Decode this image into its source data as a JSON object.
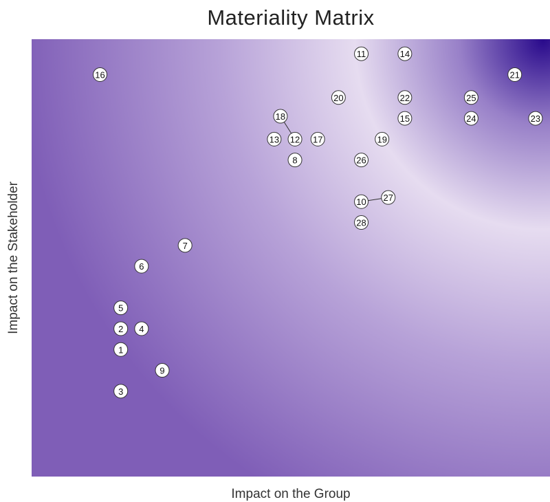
{
  "chart_data": {
    "type": "scatter",
    "title": "Materiality Matrix",
    "xlabel": "Impact on the Group",
    "ylabel": "Impact on the Stakeholder",
    "xlim": [
      0,
      25
    ],
    "ylim": [
      0,
      21
    ],
    "grid": false,
    "legend": "none",
    "background_gradient": {
      "colors": [
        "#7f5eb7",
        "#b7a2d8",
        "#e6dcf0",
        "#9880c8",
        "#2a0b8c"
      ],
      "description": "radial emphasis increasing toward top-right"
    },
    "marker_style": {
      "fill": "#ffffff",
      "stroke": "#333333"
    },
    "points": [
      {
        "label": "1",
        "x": 4.3,
        "y": 6.1
      },
      {
        "label": "2",
        "x": 4.3,
        "y": 7.1
      },
      {
        "label": "3",
        "x": 4.3,
        "y": 4.1
      },
      {
        "label": "4",
        "x": 5.3,
        "y": 7.1
      },
      {
        "label": "5",
        "x": 4.3,
        "y": 8.1
      },
      {
        "label": "6",
        "x": 5.3,
        "y": 10.1
      },
      {
        "label": "7",
        "x": 7.4,
        "y": 11.1
      },
      {
        "label": "8",
        "x": 12.7,
        "y": 15.2
      },
      {
        "label": "9",
        "x": 6.3,
        "y": 5.1
      },
      {
        "label": "10",
        "x": 15.9,
        "y": 13.2
      },
      {
        "label": "11",
        "x": 15.9,
        "y": 20.3
      },
      {
        "label": "12",
        "x": 12.7,
        "y": 16.2
      },
      {
        "label": "13",
        "x": 11.7,
        "y": 16.2
      },
      {
        "label": "14",
        "x": 18.0,
        "y": 20.3
      },
      {
        "label": "15",
        "x": 18.0,
        "y": 17.2
      },
      {
        "label": "16",
        "x": 3.3,
        "y": 19.3
      },
      {
        "label": "17",
        "x": 13.8,
        "y": 16.2
      },
      {
        "label": "18",
        "x": 12.0,
        "y": 17.3
      },
      {
        "label": "19",
        "x": 16.9,
        "y": 16.2
      },
      {
        "label": "20",
        "x": 14.8,
        "y": 18.2
      },
      {
        "label": "21",
        "x": 23.3,
        "y": 19.3
      },
      {
        "label": "22",
        "x": 18.0,
        "y": 18.2
      },
      {
        "label": "23",
        "x": 24.3,
        "y": 17.2
      },
      {
        "label": "24",
        "x": 21.2,
        "y": 17.2
      },
      {
        "label": "25",
        "x": 21.2,
        "y": 18.2
      },
      {
        "label": "26",
        "x": 15.9,
        "y": 15.2
      },
      {
        "label": "27",
        "x": 17.2,
        "y": 13.4
      },
      {
        "label": "28",
        "x": 15.9,
        "y": 12.2
      }
    ],
    "connectors": [
      {
        "from": "18",
        "to": "12"
      },
      {
        "from": "27",
        "to": "10"
      }
    ]
  }
}
